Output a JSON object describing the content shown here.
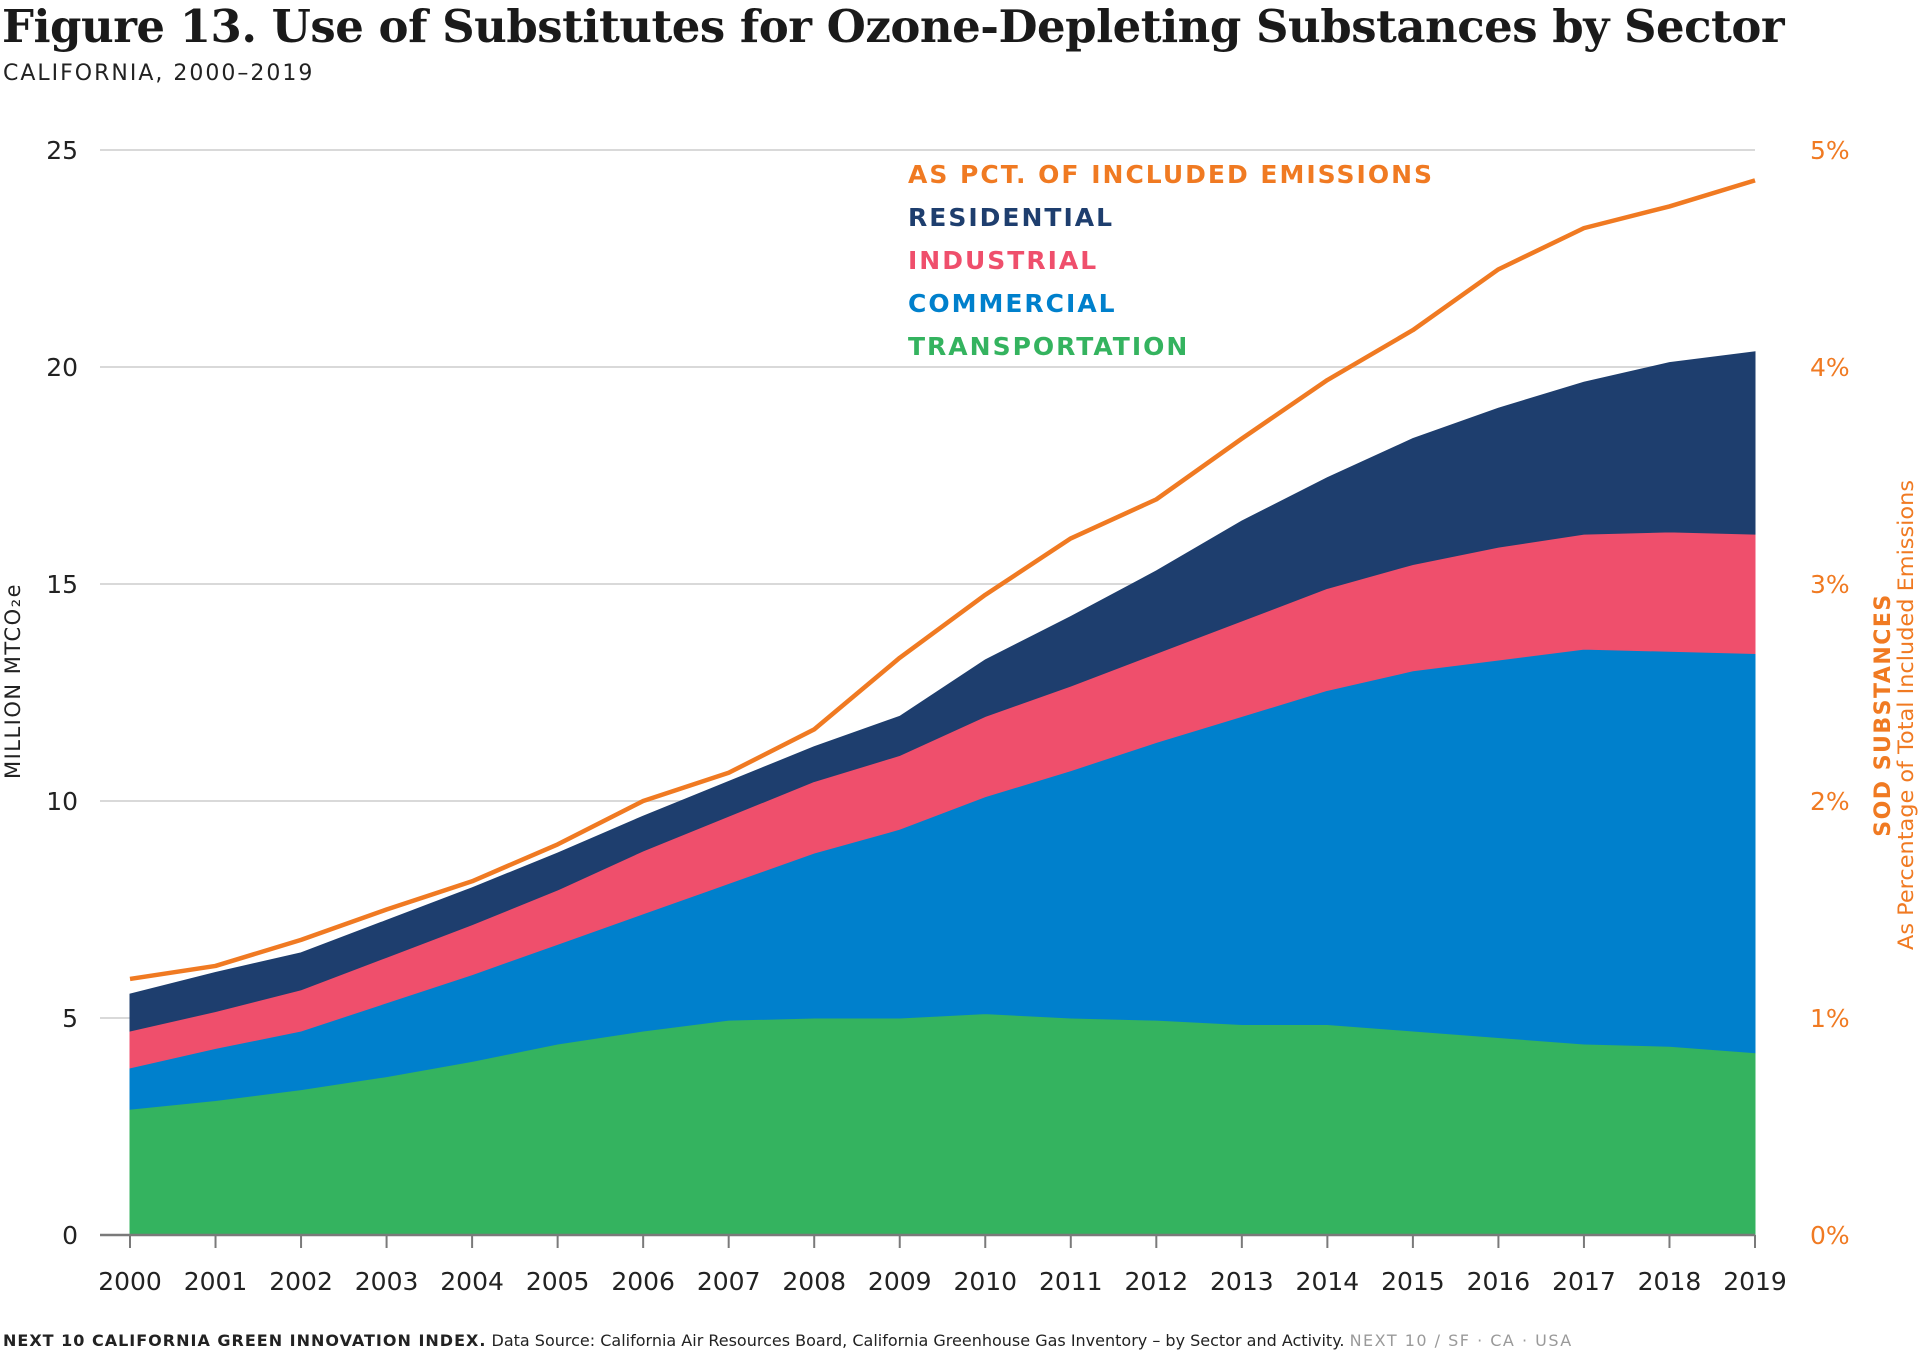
{
  "title": "Figure 13. Use of Substitutes for Ozone-Depleting Substances by Sector",
  "subtitle": "CALIFORNIA, 2000–2019",
  "footer": {
    "brand": "NEXT 10 CALIFORNIA GREEN INNOVATION INDEX.",
    "source": "Data Source: California Air Resources Board, California Greenhouse Gas Inventory – by Sector and Activity.",
    "credit": "NEXT 10 / SF · CA · USA"
  },
  "colors": {
    "transportation": "#34b35f",
    "commercial": "#0080cc",
    "industrial": "#ef4f6c",
    "residential": "#1e3e6e",
    "pct_line": "#f07a22",
    "grid": "#d9d9d9",
    "axis": "#7a7a7a"
  },
  "chart_data": {
    "type": "area",
    "subtype": "stacked",
    "x": [
      2000,
      2001,
      2002,
      2003,
      2004,
      2005,
      2006,
      2007,
      2008,
      2009,
      2010,
      2011,
      2012,
      2013,
      2014,
      2015,
      2016,
      2017,
      2018,
      2019
    ],
    "ylabel_left": "MILLION MTCO₂e",
    "ylabel_right_title": "SOD SUBSTANCES",
    "ylabel_right_sub": "As Percentage of Total Included Emissions",
    "ylim_left": [
      0,
      25
    ],
    "yticks_left": [
      "0",
      "5",
      "10",
      "15",
      "20",
      "25"
    ],
    "ylim_right": [
      0,
      5
    ],
    "yticks_right": [
      "0%",
      "1%",
      "2%",
      "3%",
      "4%",
      "5%"
    ],
    "grid": true,
    "legend_position": "top-center",
    "series": [
      {
        "name": "TRANSPORTATION",
        "key": "transportation",
        "values": [
          2.9,
          3.1,
          3.35,
          3.65,
          4.0,
          4.4,
          4.7,
          4.95,
          5.0,
          5.0,
          5.1,
          5.0,
          4.95,
          4.85,
          4.85,
          4.7,
          4.55,
          4.4,
          4.35,
          4.2
        ]
      },
      {
        "name": "COMMERCIAL",
        "key": "commercial",
        "values": [
          0.95,
          1.2,
          1.35,
          1.7,
          2.0,
          2.3,
          2.7,
          3.15,
          3.8,
          4.35,
          5.0,
          5.7,
          6.4,
          7.1,
          7.7,
          8.3,
          8.7,
          9.1,
          9.1,
          9.2
        ]
      },
      {
        "name": "INDUSTRIAL",
        "key": "industrial",
        "values": [
          0.85,
          0.85,
          0.95,
          1.05,
          1.15,
          1.25,
          1.45,
          1.55,
          1.65,
          1.7,
          1.85,
          1.95,
          2.05,
          2.2,
          2.35,
          2.45,
          2.6,
          2.65,
          2.75,
          2.75
        ]
      },
      {
        "name": "RESIDENTIAL",
        "key": "residential",
        "values": [
          0.85,
          0.9,
          0.85,
          0.85,
          0.85,
          0.85,
          0.8,
          0.8,
          0.8,
          0.9,
          1.3,
          1.6,
          1.9,
          2.3,
          2.55,
          2.9,
          3.2,
          3.5,
          3.9,
          4.2
        ]
      }
    ],
    "line": {
      "name": "AS PCT. OF INCLUDED EMISSIONS",
      "key": "pct_line",
      "values": [
        1.18,
        1.24,
        1.36,
        1.5,
        1.63,
        1.8,
        2.0,
        2.13,
        2.33,
        2.66,
        2.95,
        3.21,
        3.39,
        3.67,
        3.94,
        4.17,
        4.45,
        4.64,
        4.74,
        4.86
      ]
    }
  }
}
